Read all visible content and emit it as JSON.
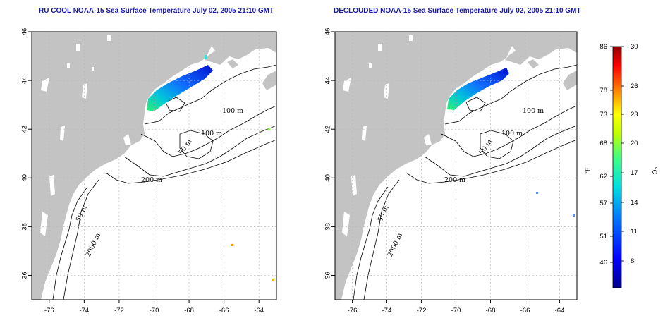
{
  "panels": [
    {
      "id": "left",
      "title": "RU COOL NOAA-15 Sea Surface Temperature July 02, 2005 21:10 GMT",
      "clouded": true
    },
    {
      "id": "right",
      "title": "DECLOUDED NOAA-15 Sea Surface Temperature July 02, 2005 21:10 GMT",
      "clouded": false
    }
  ],
  "axes": {
    "lon_ticks": [
      "-76",
      "-74",
      "-72",
      "-70",
      "-68",
      "-66",
      "-64"
    ],
    "lat_ticks": [
      "46",
      "44",
      "42",
      "40",
      "38",
      "36"
    ],
    "lon_range": [
      -77,
      -63
    ],
    "lat_range": [
      35,
      46
    ]
  },
  "contour_labels": [
    "100 m",
    "100 m",
    "50 m",
    "200 m",
    "50 m",
    "2000 m"
  ],
  "colorbar": {
    "units_f": "°F",
    "units_c": "°C",
    "f_labels": [
      "86",
      "78",
      "73",
      "68",
      "62",
      "57",
      "51",
      "46"
    ],
    "c_labels": [
      "30",
      "26",
      "23",
      "20",
      "17",
      "14",
      "11",
      "8"
    ]
  },
  "colors": {
    "land": "#c3c3c3",
    "title": "#1a1aa6",
    "grid": "#b8b8b8"
  }
}
